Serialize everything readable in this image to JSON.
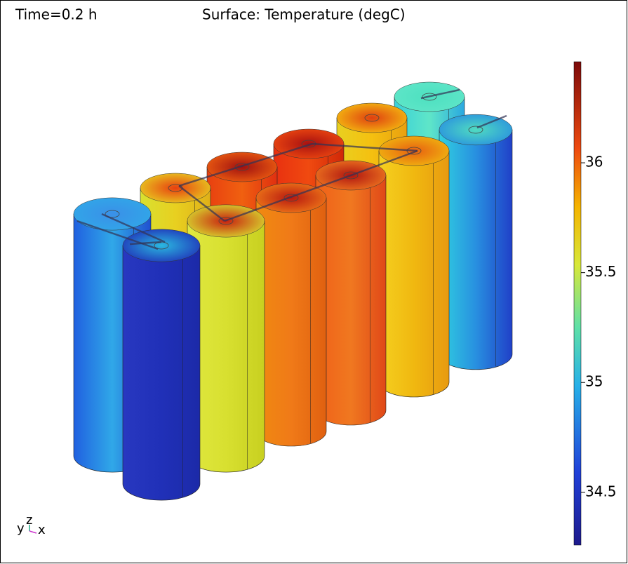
{
  "header": {
    "time": "Time=0.2 h",
    "title": "Surface: Temperature (degC)"
  },
  "colorbar": {
    "range": [
      34.26,
      36.46
    ],
    "ticks": [
      34.5,
      35,
      35.5,
      36
    ]
  },
  "axes_triad": {
    "y": "y",
    "z": "z",
    "x": "x"
  }
}
